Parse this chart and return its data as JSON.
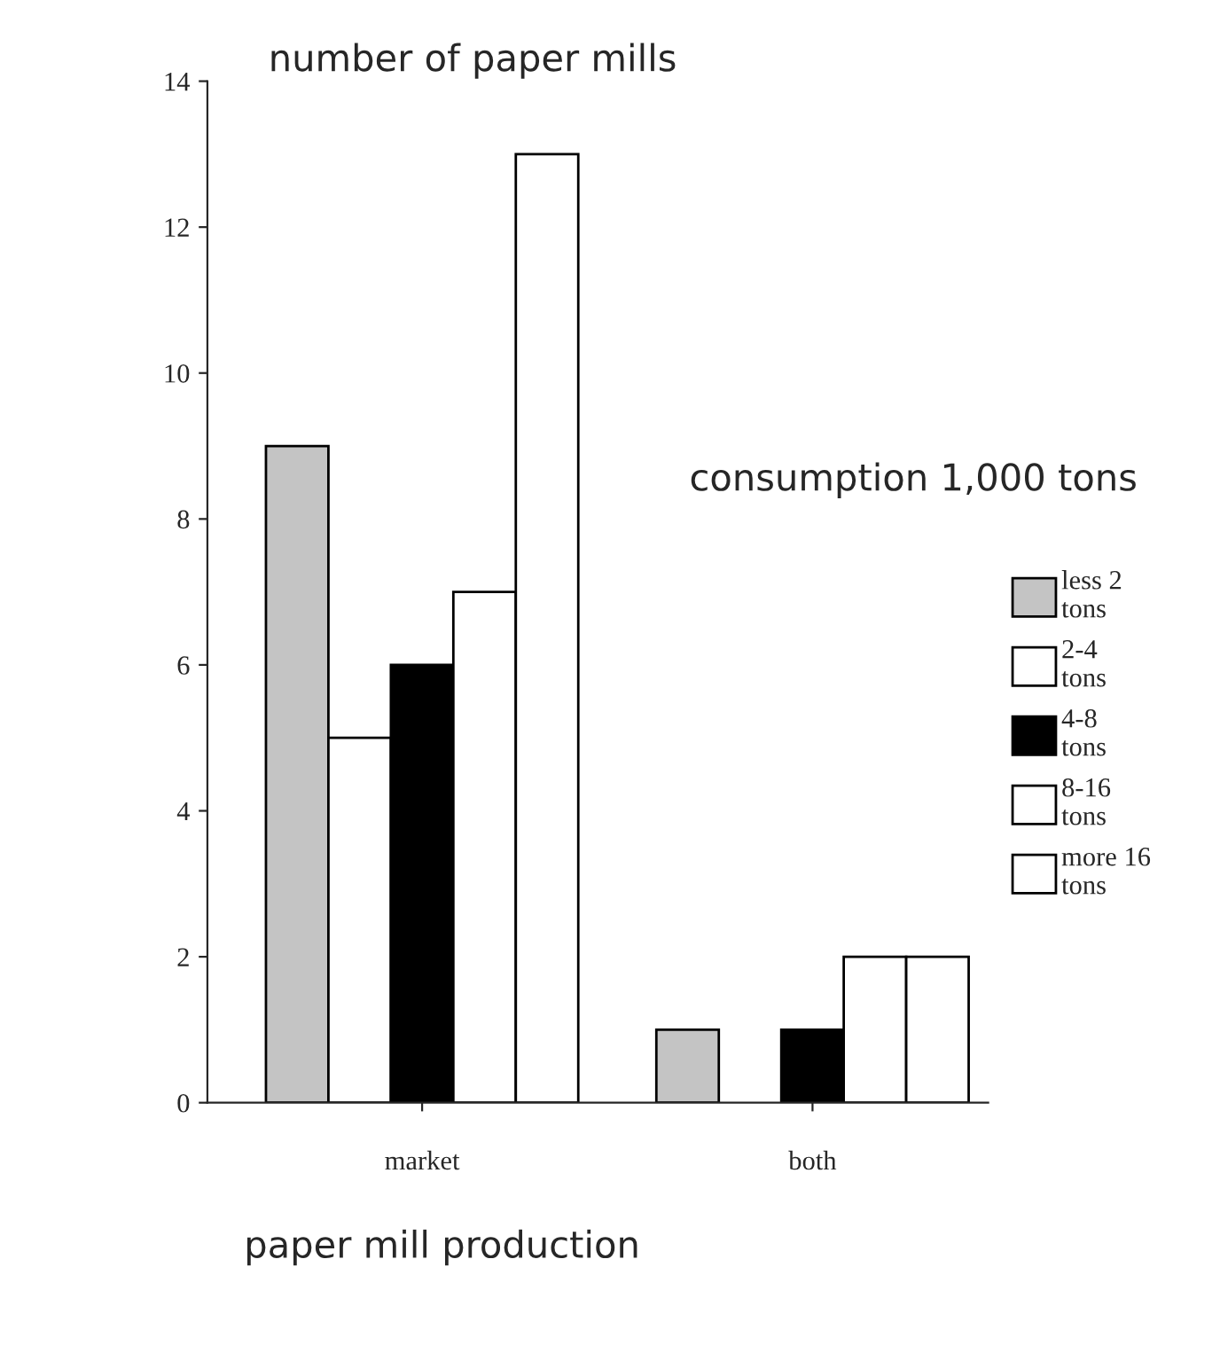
{
  "chart_data": {
    "type": "bar",
    "ylabel": "number of paper mills",
    "xlabel": "paper mill production",
    "legend_title": "consumption 1,000 tons",
    "categories": [
      "market",
      "both"
    ],
    "series": [
      {
        "name": "less 2\ntons",
        "color": "#c4c4c4",
        "values": [
          9,
          1
        ]
      },
      {
        "name": "2-4\ntons",
        "color": "#ffffff",
        "values": [
          5,
          0
        ]
      },
      {
        "name": "4-8\ntons",
        "color": "#000000",
        "values": [
          6,
          1
        ]
      },
      {
        "name": "8-16\ntons",
        "color": "#ffffff",
        "values": [
          7,
          2
        ]
      },
      {
        "name": "more 16\ntons",
        "color": "#ffffff",
        "values": [
          13,
          2
        ]
      }
    ],
    "ylim": [
      0,
      14
    ],
    "yticks": [
      0,
      2,
      4,
      6,
      8,
      10,
      12,
      14
    ],
    "grid": false,
    "legend": "right"
  }
}
